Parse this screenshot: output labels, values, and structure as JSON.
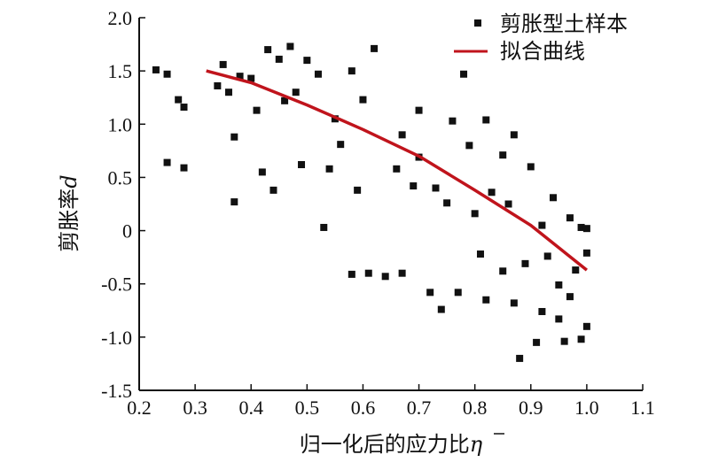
{
  "chart_data": {
    "type": "scatter",
    "xlabel": "归一化后的应力比",
    "xlabel_symbol": "η",
    "ylabel": "剪胀率",
    "ylabel_symbol": "d",
    "xlim": [
      0.2,
      1.1
    ],
    "ylim": [
      -1.5,
      2.0
    ],
    "x_ticks": [
      "0.2",
      "0.3",
      "0.4",
      "0.5",
      "0.6",
      "0.7",
      "0.8",
      "0.9",
      "1.0",
      "1.1"
    ],
    "y_ticks": [
      "2.0",
      "1.5",
      "1.0",
      "0.5",
      "0",
      "-0.5",
      "-1.0",
      "-1.5"
    ],
    "legend_position": "top-right",
    "series": [
      {
        "name": "剪胀型土样本",
        "kind": "scatter",
        "marker": "square",
        "color": "#111111",
        "points": [
          [
            0.23,
            1.51
          ],
          [
            0.25,
            1.47
          ],
          [
            0.25,
            0.64
          ],
          [
            0.27,
            1.23
          ],
          [
            0.28,
            1.16
          ],
          [
            0.28,
            0.59
          ],
          [
            0.34,
            1.36
          ],
          [
            0.35,
            1.56
          ],
          [
            0.36,
            1.3
          ],
          [
            0.37,
            0.88
          ],
          [
            0.37,
            0.27
          ],
          [
            0.38,
            1.45
          ],
          [
            0.4,
            1.43
          ],
          [
            0.41,
            1.13
          ],
          [
            0.42,
            0.55
          ],
          [
            0.43,
            1.7
          ],
          [
            0.44,
            0.38
          ],
          [
            0.45,
            1.61
          ],
          [
            0.46,
            1.22
          ],
          [
            0.47,
            1.73
          ],
          [
            0.48,
            1.3
          ],
          [
            0.49,
            0.62
          ],
          [
            0.5,
            1.6
          ],
          [
            0.52,
            1.47
          ],
          [
            0.53,
            0.03
          ],
          [
            0.54,
            0.58
          ],
          [
            0.55,
            1.05
          ],
          [
            0.56,
            0.81
          ],
          [
            0.58,
            1.5
          ],
          [
            0.58,
            -0.41
          ],
          [
            0.59,
            0.38
          ],
          [
            0.6,
            1.23
          ],
          [
            0.61,
            -0.4
          ],
          [
            0.62,
            1.71
          ],
          [
            0.64,
            -0.43
          ],
          [
            0.66,
            0.58
          ],
          [
            0.67,
            0.9
          ],
          [
            0.67,
            -0.4
          ],
          [
            0.69,
            0.42
          ],
          [
            0.7,
            1.13
          ],
          [
            0.7,
            0.69
          ],
          [
            0.72,
            -0.58
          ],
          [
            0.73,
            0.4
          ],
          [
            0.74,
            -0.74
          ],
          [
            0.75,
            0.26
          ],
          [
            0.76,
            1.03
          ],
          [
            0.77,
            -0.58
          ],
          [
            0.78,
            1.47
          ],
          [
            0.79,
            0.8
          ],
          [
            0.8,
            0.16
          ],
          [
            0.81,
            -0.22
          ],
          [
            0.82,
            1.04
          ],
          [
            0.82,
            -0.65
          ],
          [
            0.83,
            0.36
          ],
          [
            0.85,
            0.71
          ],
          [
            0.85,
            -0.38
          ],
          [
            0.86,
            0.25
          ],
          [
            0.87,
            0.9
          ],
          [
            0.87,
            -0.68
          ],
          [
            0.88,
            -1.2
          ],
          [
            0.89,
            -0.31
          ],
          [
            0.9,
            0.6
          ],
          [
            0.91,
            -1.05
          ],
          [
            0.92,
            0.05
          ],
          [
            0.92,
            -0.76
          ],
          [
            0.93,
            -0.24
          ],
          [
            0.94,
            0.31
          ],
          [
            0.95,
            -0.51
          ],
          [
            0.95,
            -0.83
          ],
          [
            0.96,
            -1.04
          ],
          [
            0.97,
            0.12
          ],
          [
            0.97,
            -0.62
          ],
          [
            0.98,
            -0.37
          ],
          [
            0.99,
            0.03
          ],
          [
            0.99,
            -1.02
          ],
          [
            1.0,
            -0.21
          ],
          [
            1.0,
            -0.9
          ],
          [
            1.0,
            0.02
          ]
        ]
      },
      {
        "name": "拟合曲线",
        "kind": "line",
        "color": "#c0141c",
        "points": [
          [
            0.32,
            1.5
          ],
          [
            0.4,
            1.39
          ],
          [
            0.5,
            1.18
          ],
          [
            0.6,
            0.95
          ],
          [
            0.7,
            0.7
          ],
          [
            0.8,
            0.38
          ],
          [
            0.9,
            0.05
          ],
          [
            1.0,
            -0.37
          ]
        ]
      }
    ]
  }
}
